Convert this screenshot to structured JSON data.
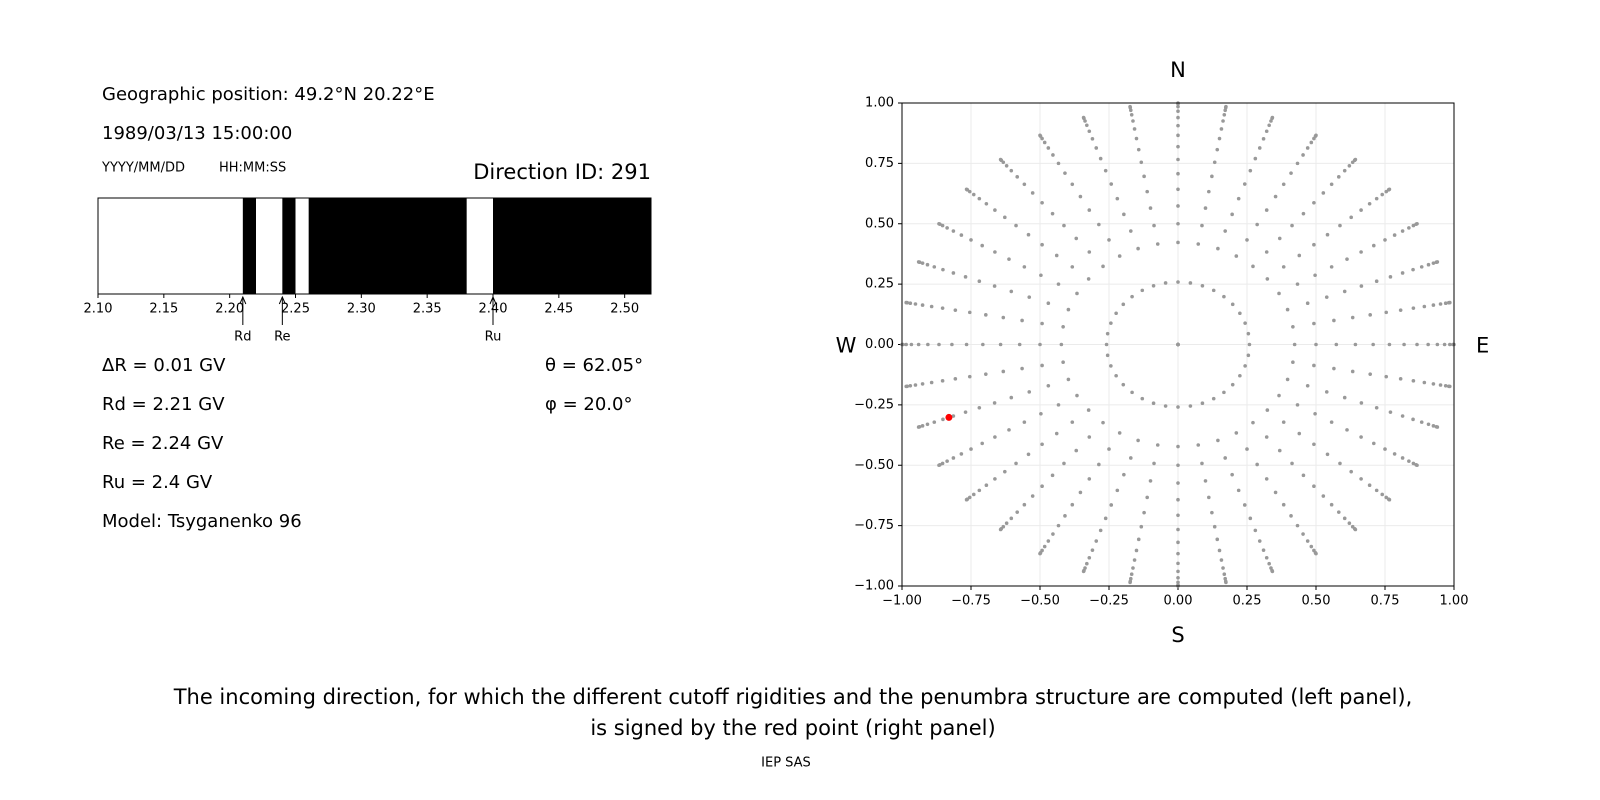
{
  "left_panel": {
    "position": "Geographic position: 49.2°N 20.22°E",
    "datetime": "1989/03/13 15:00:00",
    "date_format": "YYYY/MM/DD",
    "time_format": "HH:MM:SS",
    "direction_id": "Direction ID: 291",
    "info": [
      "ΔR = 0.01 GV",
      "Rd = 2.21 GV",
      "Re = 2.24 GV",
      "Ru = 2.4 GV",
      "Model: Tsyganenko 96"
    ],
    "angles": [
      "θ = 62.05°",
      "φ = 20.0°"
    ]
  },
  "chart_data": [
    {
      "type": "penumbra",
      "xlim": [
        2.1,
        2.52
      ],
      "xticks": [
        {
          "value": 2.1,
          "label": "2.10"
        },
        {
          "value": 2.15,
          "label": "2.15"
        },
        {
          "value": 2.2,
          "label": "2.20"
        },
        {
          "value": 2.25,
          "label": "2.25"
        },
        {
          "value": 2.3,
          "label": "2.30"
        },
        {
          "value": 2.35,
          "label": "2.35"
        },
        {
          "value": 2.4,
          "label": "2.40"
        },
        {
          "value": 2.45,
          "label": "2.45"
        },
        {
          "value": 2.5,
          "label": "2.50"
        }
      ],
      "bands": [
        [
          2.21,
          2.22
        ],
        [
          2.24,
          2.25
        ],
        [
          2.26,
          2.38
        ],
        [
          2.4,
          2.52
        ]
      ],
      "color": "#000000",
      "markers": [
        {
          "label": "Rd",
          "value": 2.21
        },
        {
          "label": "Re",
          "value": 2.24
        },
        {
          "label": "Ru",
          "value": 2.4
        }
      ]
    },
    {
      "type": "directions",
      "xlim": [
        -1,
        1
      ],
      "ylim": [
        -1,
        1
      ],
      "xticks": [
        {
          "value": -1,
          "label": "−1.00"
        },
        {
          "value": -0.75,
          "label": "−0.75"
        },
        {
          "value": -0.5,
          "label": "−0.50"
        },
        {
          "value": -0.25,
          "label": "−0.25"
        },
        {
          "value": 0,
          "label": "0.00"
        },
        {
          "value": 0.25,
          "label": "0.25"
        },
        {
          "value": 0.5,
          "label": "0.50"
        },
        {
          "value": 0.75,
          "label": "0.75"
        },
        {
          "value": 1,
          "label": "1.00"
        }
      ],
      "yticks": [
        {
          "value": -1,
          "label": "−1.00"
        },
        {
          "value": -0.75,
          "label": "−0.75"
        },
        {
          "value": -0.5,
          "label": "−0.50"
        },
        {
          "value": -0.25,
          "label": "−0.25"
        },
        {
          "value": 0,
          "label": "0.00"
        },
        {
          "value": 0.25,
          "label": "0.25"
        },
        {
          "value": 0.5,
          "label": "0.50"
        },
        {
          "value": 0.75,
          "label": "0.75"
        },
        {
          "value": 1,
          "label": "1.00"
        }
      ],
      "grid": true,
      "compass_labels": [
        "N",
        "E",
        "S",
        "W"
      ],
      "zenith": [
        0,
        15,
        25,
        30,
        35,
        40,
        45,
        50,
        55,
        60,
        65,
        70,
        75,
        80,
        85,
        90
      ],
      "azimuth": [
        0,
        10,
        20,
        30,
        40,
        50,
        60,
        70,
        80,
        90,
        100,
        110,
        120,
        130,
        140,
        150,
        160,
        170,
        180,
        190,
        200,
        210,
        220,
        230,
        240,
        250,
        260,
        270,
        280,
        290,
        300,
        310,
        320,
        330,
        340,
        350
      ],
      "color": "#999999",
      "selected": {
        "x": -0.83,
        "y": -0.302,
        "color": "#ff0000"
      }
    }
  ],
  "caption": [
    "The incoming direction, for which the different cutoff rigidities and the penumbra structure are computed (left panel),",
    "is signed by the red point (right panel)"
  ],
  "footer": "IEP SAS"
}
